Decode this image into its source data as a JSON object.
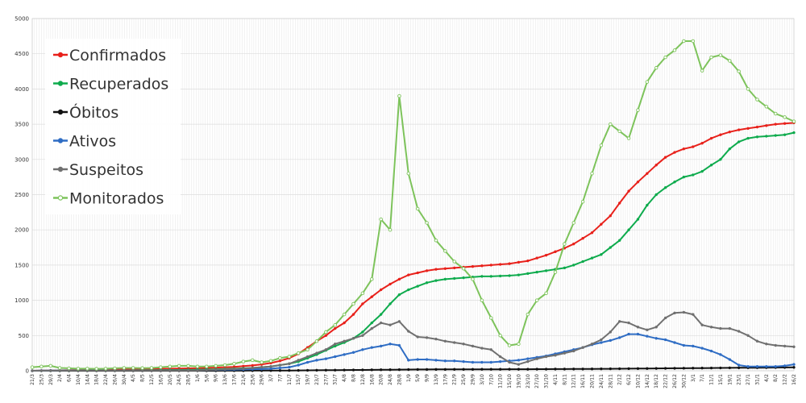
{
  "chart_data": {
    "type": "line",
    "title": "",
    "xlabel": "",
    "ylabel": "",
    "ylim": [
      0,
      5000
    ],
    "yticks": [
      0,
      500,
      1000,
      1500,
      2000,
      2500,
      3000,
      3500,
      4000,
      4500,
      5000
    ],
    "grid": true,
    "legend_position": "top-left",
    "categories": [
      "21/3",
      "25/3",
      "29/3",
      "2/4",
      "6/4",
      "10/4",
      "14/4",
      "18/4",
      "22/4",
      "26/4",
      "30/4",
      "4/5",
      "8/5",
      "12/5",
      "16/5",
      "20/5",
      "24/5",
      "28/5",
      "1/6",
      "5/6",
      "9/6",
      "13/6",
      "17/6",
      "21/6",
      "25/6",
      "29/6",
      "3/7",
      "7/7",
      "11/7",
      "15/7",
      "19/7",
      "23/7",
      "27/7",
      "31/7",
      "4/8",
      "8/8",
      "12/8",
      "16/8",
      "20/8",
      "24/8",
      "28/8",
      "1/9",
      "5/9",
      "9/9",
      "13/9",
      "17/9",
      "21/9",
      "25/9",
      "29/9",
      "3/10",
      "7/10",
      "11/10",
      "15/10",
      "19/10",
      "23/10",
      "27/10",
      "31/10",
      "4/11",
      "8/11",
      "12/11",
      "16/11",
      "20/11",
      "24/11",
      "28/11",
      "2/12",
      "6/12",
      "10/12",
      "14/12",
      "18/12",
      "22/12",
      "26/12",
      "30/12",
      "3/1",
      "7/1",
      "11/1",
      "15/1",
      "19/1",
      "23/1",
      "27/1",
      "31/1",
      "4/2",
      "8/2",
      "12/2",
      "16/2"
    ],
    "series": [
      {
        "name": "Confirmados",
        "color": "#e8211b",
        "values": [
          0,
          2,
          4,
          6,
          8,
          10,
          12,
          14,
          16,
          18,
          20,
          22,
          24,
          26,
          28,
          30,
          32,
          34,
          36,
          40,
          45,
          50,
          55,
          65,
          75,
          90,
          110,
          140,
          180,
          240,
          330,
          420,
          500,
          600,
          680,
          800,
          950,
          1050,
          1150,
          1230,
          1300,
          1360,
          1390,
          1420,
          1440,
          1450,
          1460,
          1470,
          1480,
          1490,
          1500,
          1510,
          1520,
          1540,
          1560,
          1600,
          1640,
          1690,
          1740,
          1800,
          1880,
          1960,
          2080,
          2200,
          2380,
          2550,
          2680,
          2800,
          2920,
          3030,
          3100,
          3150,
          3180,
          3230,
          3300,
          3350,
          3390,
          3420,
          3440,
          3460,
          3480,
          3500,
          3510,
          3520
        ]
      },
      {
        "name": "Recuperados",
        "color": "#0eab4d",
        "values": [
          0,
          0,
          0,
          0,
          0,
          1,
          2,
          3,
          4,
          5,
          6,
          7,
          8,
          9,
          10,
          11,
          12,
          13,
          15,
          18,
          21,
          25,
          30,
          35,
          40,
          50,
          60,
          80,
          100,
          130,
          180,
          230,
          290,
          350,
          400,
          460,
          550,
          680,
          800,
          950,
          1080,
          1150,
          1200,
          1250,
          1280,
          1300,
          1310,
          1320,
          1330,
          1340,
          1340,
          1345,
          1350,
          1360,
          1380,
          1400,
          1420,
          1440,
          1460,
          1500,
          1550,
          1600,
          1650,
          1750,
          1850,
          2000,
          2150,
          2350,
          2500,
          2600,
          2680,
          2750,
          2780,
          2830,
          2920,
          3000,
          3150,
          3250,
          3300,
          3320,
          3330,
          3340,
          3350,
          3380
        ]
      },
      {
        "name": "Óbitos",
        "color": "#111111",
        "values": [
          0,
          0,
          0,
          0,
          0,
          0,
          0,
          0,
          0,
          0,
          0,
          0,
          0,
          0,
          0,
          0,
          0,
          0,
          0,
          0,
          0,
          1,
          1,
          1,
          2,
          2,
          3,
          3,
          4,
          5,
          6,
          7,
          8,
          9,
          10,
          11,
          12,
          13,
          14,
          15,
          16,
          17,
          18,
          18,
          19,
          19,
          20,
          20,
          20,
          21,
          21,
          21,
          22,
          22,
          22,
          23,
          23,
          24,
          24,
          25,
          25,
          26,
          27,
          28,
          29,
          30,
          31,
          32,
          33,
          34,
          35,
          36,
          37,
          38,
          39,
          40,
          41,
          42,
          43,
          44,
          45,
          46,
          47,
          48
        ]
      },
      {
        "name": "Ativos",
        "color": "#2f6dc4",
        "values": [
          0,
          2,
          4,
          5,
          6,
          6,
          6,
          6,
          6,
          6,
          6,
          6,
          6,
          6,
          6,
          6,
          6,
          6,
          6,
          10,
          12,
          14,
          16,
          18,
          22,
          25,
          30,
          40,
          50,
          80,
          120,
          150,
          170,
          200,
          230,
          260,
          300,
          330,
          350,
          380,
          360,
          150,
          160,
          160,
          150,
          140,
          140,
          130,
          120,
          120,
          120,
          130,
          140,
          150,
          170,
          190,
          210,
          240,
          270,
          300,
          330,
          370,
          400,
          430,
          470,
          520,
          520,
          490,
          460,
          440,
          400,
          360,
          350,
          320,
          280,
          230,
          160,
          80,
          60,
          60,
          60,
          60,
          70,
          90
        ]
      },
      {
        "name": "Suspeitos",
        "color": "#707070",
        "values": [
          0,
          1,
          2,
          3,
          4,
          5,
          5,
          5,
          5,
          5,
          5,
          5,
          5,
          5,
          5,
          5,
          5,
          5,
          5,
          10,
          15,
          20,
          25,
          30,
          40,
          50,
          60,
          80,
          100,
          150,
          200,
          250,
          300,
          380,
          420,
          460,
          500,
          600,
          680,
          650,
          700,
          560,
          480,
          470,
          450,
          420,
          400,
          380,
          350,
          320,
          300,
          200,
          120,
          90,
          130,
          170,
          200,
          220,
          250,
          280,
          330,
          380,
          440,
          550,
          700,
          680,
          620,
          580,
          620,
          750,
          820,
          830,
          800,
          650,
          620,
          600,
          600,
          560,
          500,
          420,
          380,
          360,
          350,
          340
        ]
      },
      {
        "name": "Monitorados",
        "color": "#7dc35b",
        "values": [
          50,
          60,
          70,
          40,
          35,
          30,
          30,
          28,
          30,
          35,
          40,
          40,
          38,
          40,
          50,
          60,
          70,
          70,
          60,
          60,
          70,
          80,
          100,
          130,
          150,
          120,
          140,
          180,
          200,
          250,
          300,
          420,
          550,
          650,
          800,
          950,
          1100,
          1300,
          2150,
          2000,
          3900,
          2800,
          2300,
          2100,
          1850,
          1700,
          1550,
          1450,
          1300,
          1000,
          750,
          500,
          360,
          380,
          800,
          1000,
          1100,
          1400,
          1800,
          2100,
          2400,
          2800,
          3200,
          3500,
          3400,
          3300,
          3700,
          4100,
          4300,
          4450,
          4550,
          4680,
          4680,
          4260,
          4450,
          4480,
          4400,
          4250,
          4000,
          3850,
          3750,
          3650,
          3600,
          3540
        ]
      }
    ]
  }
}
